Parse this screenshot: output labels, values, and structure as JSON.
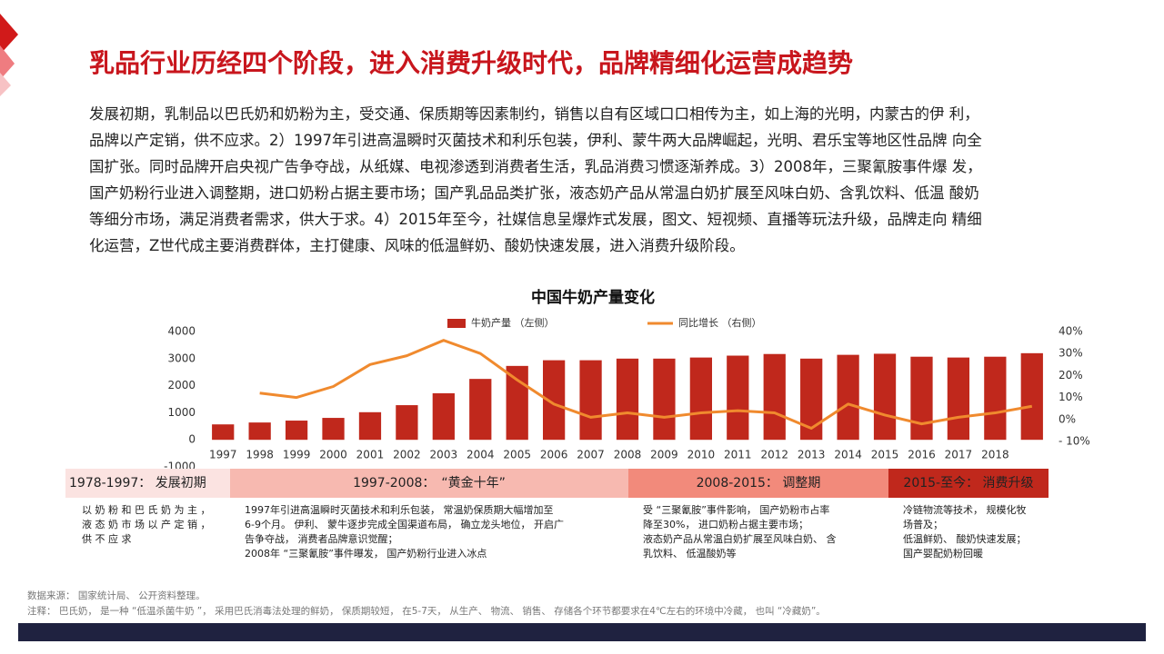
{
  "header": {
    "title": "乳品行业历经四个阶段，进入消费升级时代，品牌精细化运营成趋势"
  },
  "paragraph": [
    "发展初期，乳制品以巴氏奶和奶粉为主，受交通、保质期等因素制约，销售以自有区域口口相传为主，如上海的光明，内蒙古的伊 利，",
    "品牌以产定销，供不应求。2）1997年引进高温瞬时灭菌技术和利乐包装，伊利、蒙牛两大品牌崛起，光明、君乐宝等地区性品牌 向全",
    "国扩张。同时品牌开启央视广告争夺战，从纸媒、电视渗透到消费者生活，乳品消费习惯逐渐养成。3）2008年，三聚氰胺事件爆 发，",
    "国产奶粉行业进入调整期，进口奶粉占据主要市场；国产乳品品类扩张，液态奶产品从常温白奶扩展至风味白奶、含乳饮料、低温 酸奶",
    "等细分市场，满足消费者需求，供大于求。4）2015年至今，社媒信息呈爆炸式发展，图文、短视频、直播等玩法升级，品牌走向 精细",
    "化运营，Z世代成主要消费群体，主打健康、风味的低温鲜奶、酸奶快速发展，进入消费升级阶段。"
  ],
  "chart_data": {
    "type": "bar",
    "title": "中国牛奶产量变化",
    "categories": [
      "1997",
      "1998",
      "1999",
      "2000",
      "2001",
      "2002",
      "2003",
      "2004",
      "2005",
      "2006",
      "2007",
      "2008",
      "2009",
      "2010",
      "2011",
      "2012",
      "2013",
      "2014",
      "2015",
      "2016",
      "2017",
      "2018",
      null
    ],
    "series": [
      {
        "name": "牛奶产量 （左侧）",
        "type": "bar",
        "color": "#c0281c",
        "values": [
          570,
          640,
          710,
          810,
          1020,
          1280,
          1720,
          2250,
          2730,
          2940,
          2940,
          3000,
          3000,
          3040,
          3110,
          3170,
          3000,
          3140,
          3180,
          3070,
          3040,
          3070,
          3200
        ]
      },
      {
        "name": "同比增长 （右侧）",
        "type": "line",
        "axis": "y2",
        "color": "#f08a2e",
        "values": [
          null,
          12,
          10,
          15,
          25,
          29,
          36,
          30,
          18,
          7,
          1,
          3,
          1,
          3,
          4,
          3,
          -4,
          7,
          2,
          -2,
          1,
          3,
          6
        ]
      }
    ],
    "ylim": [
      -1000,
      4000
    ],
    "yticks": [
      -1000,
      0,
      1000,
      2000,
      3000,
      4000
    ],
    "y2lim": [
      -10,
      40
    ],
    "y2ticks": [
      {
        "value": -10,
        "label": "- 10%"
      },
      {
        "value": 0,
        "label": "0%"
      },
      {
        "value": 10,
        "label": "10%"
      },
      {
        "value": 20,
        "label": "20%"
      },
      {
        "value": 30,
        "label": "30%"
      },
      {
        "value": 40,
        "label": "40%"
      }
    ],
    "legend": "top"
  },
  "timeline": [
    {
      "label": "1978-1997： 发展初期",
      "color": "#fbe3e1",
      "text": [
        "以 奶 粉 和 巴 氏 奶 为 主 ，",
        "液 态 奶 市 场 以 产 定 销 ，",
        "供 不 应 求"
      ]
    },
    {
      "label": "1997-2008：　“黄金十年”",
      "color": "#f7b9b0",
      "text": [
        "1997年引进高温瞬时灭菌技术和利乐包装， 常温奶保质期大幅增加至",
        "6-9个月。 伊利、 蒙牛逐步完成全国渠道布局， 确立龙头地位， 开启广",
        "告争夺战， 消费者品牌意识觉醒；",
        "2008年 “三聚氰胺”事件曝发， 国产奶粉行业进入冰点"
      ]
    },
    {
      "label": "2008-2015： 调整期",
      "color": "#f28a7b",
      "text": [
        "受 “三聚氰胺”事件影响， 国产奶粉市占率",
        "降至30%， 进口奶粉占据主要市场；",
        "液态奶产品从常温白奶扩展至风味白奶、 含",
        "乳饮料、 低温酸奶等"
      ]
    },
    {
      "label": "2015-至今： 消费升级",
      "color": "#c0281c",
      "text": [
        "冷链物流等技术， 规模化牧",
        "场普及；",
        "低温鲜奶、 酸奶快速发展；",
        "国产婴配奶粉回暖"
      ]
    }
  ],
  "notes": [
    "数据来源： 国家统计局、 公开资料整理。",
    "注释： 巴氏奶， 是一种 “低温杀菌牛奶 ”， 采用巴氏消毒法处理的鲜奶， 保质期较短， 在5-7天， 从生产、 物流、 销售、 存储各个环节都要求在4℃左右的环境中冷藏， 也叫 “冷藏奶”。"
  ]
}
